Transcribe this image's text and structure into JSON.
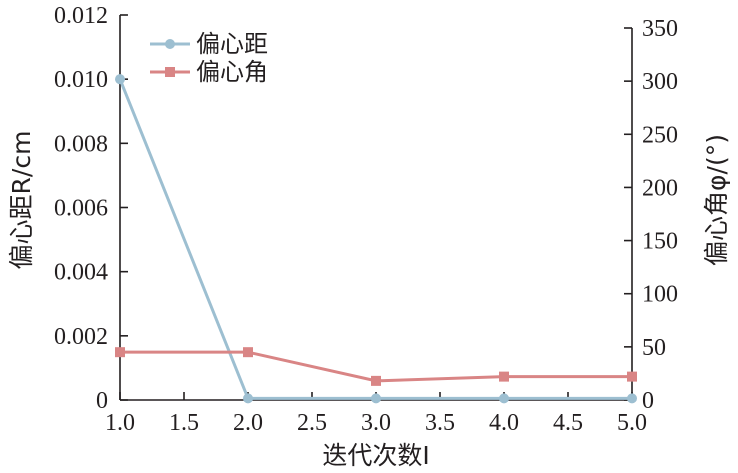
{
  "chart_data": {
    "type": "line",
    "xlabel": "迭代次数I",
    "ylabel_left": "偏心距R/cm",
    "ylabel_right": "偏心角φ/(°)",
    "xlim": [
      1.0,
      5.0
    ],
    "ylim_left": [
      0,
      0.012
    ],
    "ylim_right": [
      0,
      350
    ],
    "x_ticks": [
      "1.0",
      "1.5",
      "2.0",
      "2.5",
      "3.0",
      "3.5",
      "4.0",
      "4.5",
      "5.0"
    ],
    "y_left_ticks": [
      "0",
      "0.002",
      "0.004",
      "0.006",
      "0.008",
      "0.010",
      "0.012"
    ],
    "y_right_ticks": [
      "0",
      "50",
      "100",
      "150",
      "200",
      "250",
      "300",
      "350"
    ],
    "grid": false,
    "legend_position": "top-left",
    "series": [
      {
        "name": "偏心距",
        "axis": "left",
        "color": "#9dbfd1",
        "marker": "circle",
        "x": [
          1.0,
          2.0,
          3.0,
          4.0,
          5.0
        ],
        "y": [
          0.01,
          5e-05,
          5e-05,
          5e-05,
          5e-05
        ]
      },
      {
        "name": "偏心角",
        "axis": "right",
        "color": "#d98585",
        "marker": "square",
        "x": [
          1.0,
          2.0,
          3.0,
          4.0,
          5.0
        ],
        "y": [
          45,
          45,
          18,
          22,
          22
        ]
      }
    ]
  }
}
